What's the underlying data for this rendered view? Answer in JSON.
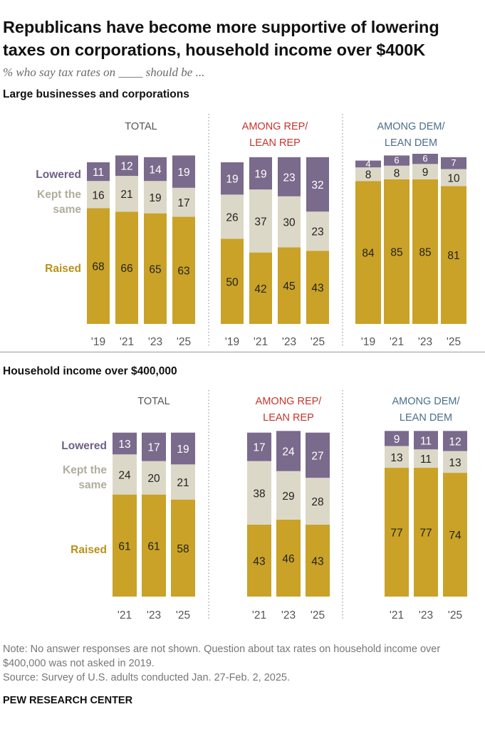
{
  "title": "Republicans have become more supportive of lowering taxes on corporations, household income over $400K",
  "subtitle": "% who say tax rates on ____ should be ...",
  "footer": {
    "note": "Note: No answer responses are not shown. Question about tax rates on household income over $400,000 was not asked in 2019.",
    "source": "Source: Survey of U.S. adults conducted Jan. 27-Feb. 2, 2025.",
    "brand": "PEW RESEARCH CENTER"
  },
  "colors": {
    "raised": "#c9a227",
    "kept": "#dcd8c8",
    "lowered": "#7a6a8c",
    "raised_label": "#b8921a",
    "kept_label": "#b1ad9c",
    "lowered_label": "#6f5f85",
    "rep": "#c8342b",
    "dem": "#4a6f8a",
    "total": "#555555"
  },
  "chart_data": [
    {
      "type": "bar",
      "stacked": true,
      "title": "Large businesses and corporations",
      "legend": [
        "Lowered",
        "Kept the same",
        "Raised"
      ],
      "panels": [
        {
          "header": [
            "TOTAL"
          ],
          "header_color": "total",
          "categories": [
            "'19",
            "'21",
            "'23",
            "'25"
          ],
          "series": [
            {
              "name": "Raised",
              "values": [
                68,
                66,
                65,
                63
              ]
            },
            {
              "name": "Kept the same",
              "values": [
                16,
                21,
                19,
                17
              ]
            },
            {
              "name": "Lowered",
              "values": [
                11,
                12,
                14,
                19
              ]
            }
          ]
        },
        {
          "header": [
            "AMONG REP/",
            "LEAN REP"
          ],
          "header_color": "rep",
          "categories": [
            "'19",
            "'21",
            "'23",
            "'25"
          ],
          "series": [
            {
              "name": "Raised",
              "values": [
                50,
                42,
                45,
                43
              ]
            },
            {
              "name": "Kept the same",
              "values": [
                26,
                37,
                30,
                23
              ]
            },
            {
              "name": "Lowered",
              "values": [
                19,
                19,
                23,
                32
              ]
            }
          ]
        },
        {
          "header": [
            "AMONG DEM/",
            "LEAN DEM"
          ],
          "header_color": "dem",
          "categories": [
            "'19",
            "'21",
            "'23",
            "'25"
          ],
          "series": [
            {
              "name": "Raised",
              "values": [
                84,
                85,
                85,
                81
              ]
            },
            {
              "name": "Kept the same",
              "values": [
                8,
                8,
                9,
                10
              ]
            },
            {
              "name": "Lowered",
              "values": [
                4,
                6,
                6,
                7
              ]
            }
          ]
        }
      ]
    },
    {
      "type": "bar",
      "stacked": true,
      "title": "Household income over $400,000",
      "legend": [
        "Lowered",
        "Kept the same",
        "Raised"
      ],
      "panels": [
        {
          "header": [
            "TOTAL"
          ],
          "header_color": "total",
          "categories": [
            "'21",
            "'23",
            "'25"
          ],
          "series": [
            {
              "name": "Raised",
              "values": [
                61,
                61,
                58
              ]
            },
            {
              "name": "Kept the same",
              "values": [
                24,
                20,
                21
              ]
            },
            {
              "name": "Lowered",
              "values": [
                13,
                17,
                19
              ]
            }
          ]
        },
        {
          "header": [
            "AMONG REP/",
            "LEAN REP"
          ],
          "header_color": "rep",
          "categories": [
            "'21",
            "'23",
            "'25"
          ],
          "series": [
            {
              "name": "Raised",
              "values": [
                43,
                46,
                43
              ]
            },
            {
              "name": "Kept the same",
              "values": [
                38,
                29,
                28
              ]
            },
            {
              "name": "Lowered",
              "values": [
                17,
                24,
                27
              ]
            }
          ]
        },
        {
          "header": [
            "AMONG DEM/",
            "LEAN DEM"
          ],
          "header_color": "dem",
          "categories": [
            "'21",
            "'23",
            "'25"
          ],
          "series": [
            {
              "name": "Raised",
              "values": [
                77,
                77,
                74
              ]
            },
            {
              "name": "Kept the same",
              "values": [
                13,
                11,
                13
              ]
            },
            {
              "name": "Lowered",
              "values": [
                9,
                11,
                12
              ]
            }
          ]
        }
      ]
    }
  ]
}
